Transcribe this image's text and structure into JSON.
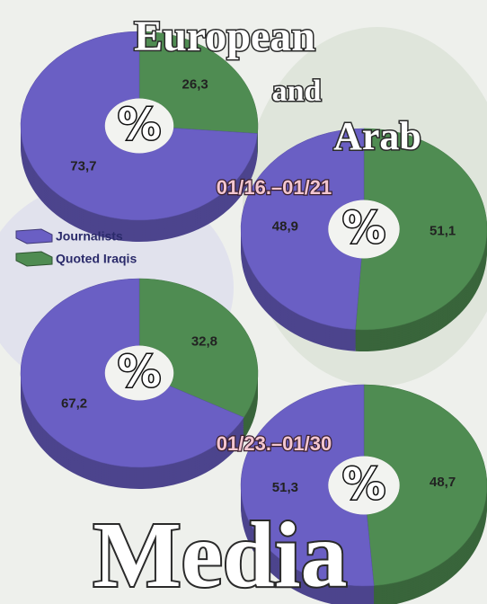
{
  "header": {
    "title": [
      "European",
      "and",
      "Arab"
    ]
  },
  "footer": "Media",
  "chart_data": [
    {
      "type": "pie",
      "categories": [
        "Journalists",
        "Quoted Iraqis"
      ],
      "values": [
        73.7,
        26.3
      ],
      "value_labels": [
        "73,7",
        "26,3"
      ],
      "colors": [
        "#6a5fc4",
        "#4f8c52"
      ],
      "center_label": "%"
    },
    {
      "type": "pie",
      "subtitle": "01/16.–01/21",
      "categories": [
        "Journalists",
        "Quoted Iraqis"
      ],
      "values": [
        48.9,
        51.1
      ],
      "value_labels": [
        "48,9",
        "51,1"
      ],
      "colors": [
        "#6a5fc4",
        "#4f8c52"
      ],
      "center_label": "%"
    },
    {
      "type": "pie",
      "categories": [
        "Journalists",
        "Quoted Iraqis"
      ],
      "values": [
        67.2,
        32.8
      ],
      "value_labels": [
        "67,2",
        "32,8"
      ],
      "colors": [
        "#6a5fc4",
        "#4f8c52"
      ],
      "center_label": "%"
    },
    {
      "type": "pie",
      "subtitle": "01/23.–01/30",
      "categories": [
        "Journalists",
        "Quoted Iraqis"
      ],
      "values": [
        51.3,
        48.7
      ],
      "value_labels": [
        "51,3",
        "48,7"
      ],
      "colors": [
        "#6a5fc4",
        "#4f8c52"
      ],
      "center_label": "%"
    }
  ]
}
